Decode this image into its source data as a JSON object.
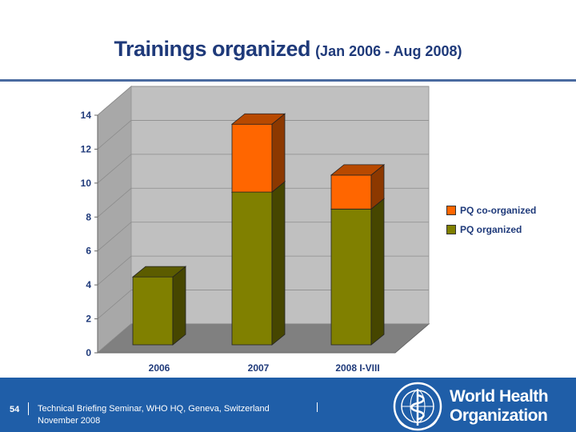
{
  "header": {
    "title_main": "Trainings organized",
    "title_sub": "(Jan 2006 - Aug 2008)"
  },
  "chart_data": {
    "type": "bar",
    "stacked": true,
    "categories": [
      "2006",
      "2007",
      "2008 I-VIII"
    ],
    "series": [
      {
        "name": "PQ organized",
        "values": [
          4,
          9,
          8
        ],
        "color": "#808000"
      },
      {
        "name": "PQ co-organized",
        "values": [
          0,
          4,
          2
        ],
        "color": "#ff6600"
      }
    ],
    "yticks": [
      0,
      2,
      4,
      6,
      8,
      10,
      12,
      14
    ],
    "ylim": [
      0,
      14
    ],
    "grid": true,
    "legend_position": "right",
    "wall_color": "#c0c0c0",
    "floor_color": "#808080"
  },
  "footer": {
    "page_number": "54",
    "line1": "Technical Briefing Seminar, WHO HQ, Geneva, Switzerland",
    "line2": "November 2008",
    "org_line1": "World Health",
    "org_line2": "Organization",
    "background": "#1f5ea8"
  }
}
